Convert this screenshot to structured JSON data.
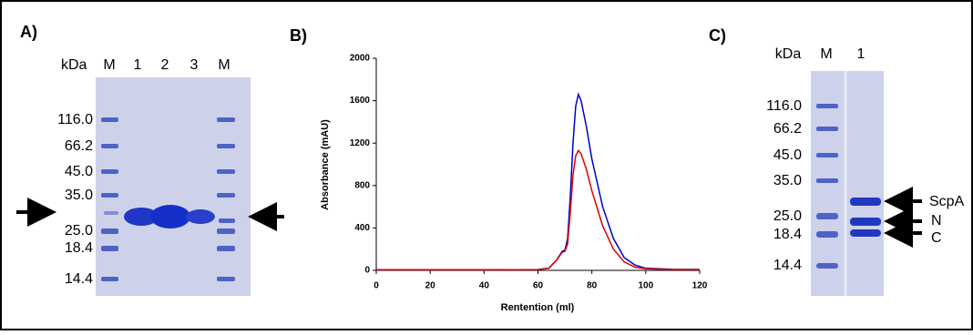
{
  "panel_a": {
    "label": "A)",
    "unit": "kDa",
    "lanes": [
      "M",
      "1",
      "2",
      "3",
      "M"
    ],
    "markers": [
      "116.0",
      "66.2",
      "45.0",
      "35.0",
      "25.0",
      "18.4",
      "14.4"
    ]
  },
  "chart_data": {
    "type": "line",
    "label": "B)",
    "x_label": "Rentention (ml)",
    "y_label": "Absorbance (mAU)",
    "xlim": [
      0,
      120
    ],
    "xticks": [
      0,
      20,
      40,
      60,
      80,
      100,
      120
    ],
    "ylim": [
      0,
      2000
    ],
    "yticks": [
      0,
      400,
      800,
      1200,
      1600,
      2000
    ],
    "x": [
      0,
      20,
      40,
      60,
      64,
      67,
      69,
      70,
      71,
      72,
      73,
      74,
      75,
      76,
      78,
      80,
      84,
      88,
      92,
      96,
      100,
      110,
      120
    ],
    "series": [
      {
        "color": "#0000cc",
        "values": [
          5,
          5,
          5,
          8,
          20,
          100,
          180,
          190,
          300,
          700,
          1200,
          1550,
          1660,
          1600,
          1350,
          1050,
          600,
          300,
          120,
          50,
          20,
          10,
          8
        ]
      },
      {
        "color": "#dd0000",
        "values": [
          5,
          5,
          5,
          8,
          20,
          100,
          170,
          180,
          250,
          550,
          900,
          1080,
          1130,
          1100,
          950,
          750,
          420,
          200,
          80,
          30,
          15,
          8,
          8
        ]
      }
    ]
  },
  "panel_c": {
    "label": "C)",
    "unit": "kDa",
    "lanes": [
      "M",
      "1"
    ],
    "markers": [
      "116.0",
      "66.2",
      "45.0",
      "35.0",
      "25.0",
      "18.4",
      "14.4"
    ],
    "bands": [
      "ScpA",
      "N",
      "C"
    ]
  }
}
